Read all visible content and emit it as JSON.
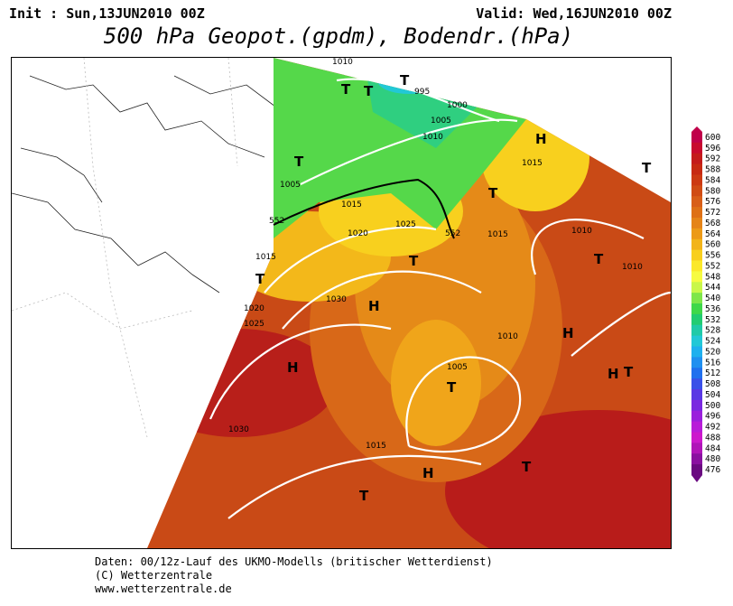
{
  "header": {
    "init": "Init : Sun,13JUN2010 00Z",
    "valid": "Valid: Wed,16JUN2010 00Z",
    "title": "500 hPa Geopot.(gpdm), Bodendr.(hPa)"
  },
  "footer": {
    "line1": "Daten: 00/12z-Lauf des UKMO-Modells (britischer Wetterdienst)",
    "line2": "(C) Wetterzentrale",
    "line3": "www.wetterzentrale.de"
  },
  "legend": {
    "levels": [
      "600",
      "596",
      "592",
      "588",
      "584",
      "580",
      "576",
      "572",
      "568",
      "564",
      "560",
      "556",
      "552",
      "548",
      "544",
      "540",
      "536",
      "532",
      "528",
      "524",
      "520",
      "516",
      "512",
      "508",
      "504",
      "500",
      "496",
      "492",
      "488",
      "484",
      "480",
      "476"
    ],
    "colors": [
      "#c0004a",
      "#c80a2e",
      "#c41b1b",
      "#c72a12",
      "#cc3a12",
      "#d04c14",
      "#d85e18",
      "#de7016",
      "#e58418",
      "#ec9a18",
      "#f2b41a",
      "#f8cf1e",
      "#fbe82a",
      "#f6fb42",
      "#c9f74a",
      "#7fe64a",
      "#3fd84a",
      "#22cc72",
      "#20caa8",
      "#22c8d6",
      "#1fb0ee",
      "#2090f0",
      "#2070ee",
      "#3a50e8",
      "#5a38e4",
      "#7a28e0",
      "#9a20dc",
      "#b81cd8",
      "#cc18cc",
      "#b014b8",
      "#8a10a0",
      "#6a0a80"
    ]
  },
  "map_labels": {
    "highs": [
      "H",
      "H",
      "H",
      "H",
      "H",
      "H"
    ],
    "lows": [
      "T",
      "T",
      "T",
      "T",
      "T",
      "T",
      "T",
      "T",
      "T",
      "T",
      "T",
      "T",
      "T"
    ],
    "isobars": [
      "1010",
      "995",
      "1000",
      "1005",
      "1010",
      "1005",
      "1015",
      "1015",
      "1020",
      "1025",
      "1015",
      "1015",
      "1020",
      "1030",
      "1025",
      "1010",
      "1010",
      "1010",
      "1005",
      "1030",
      "1015",
      "552",
      "552"
    ]
  }
}
